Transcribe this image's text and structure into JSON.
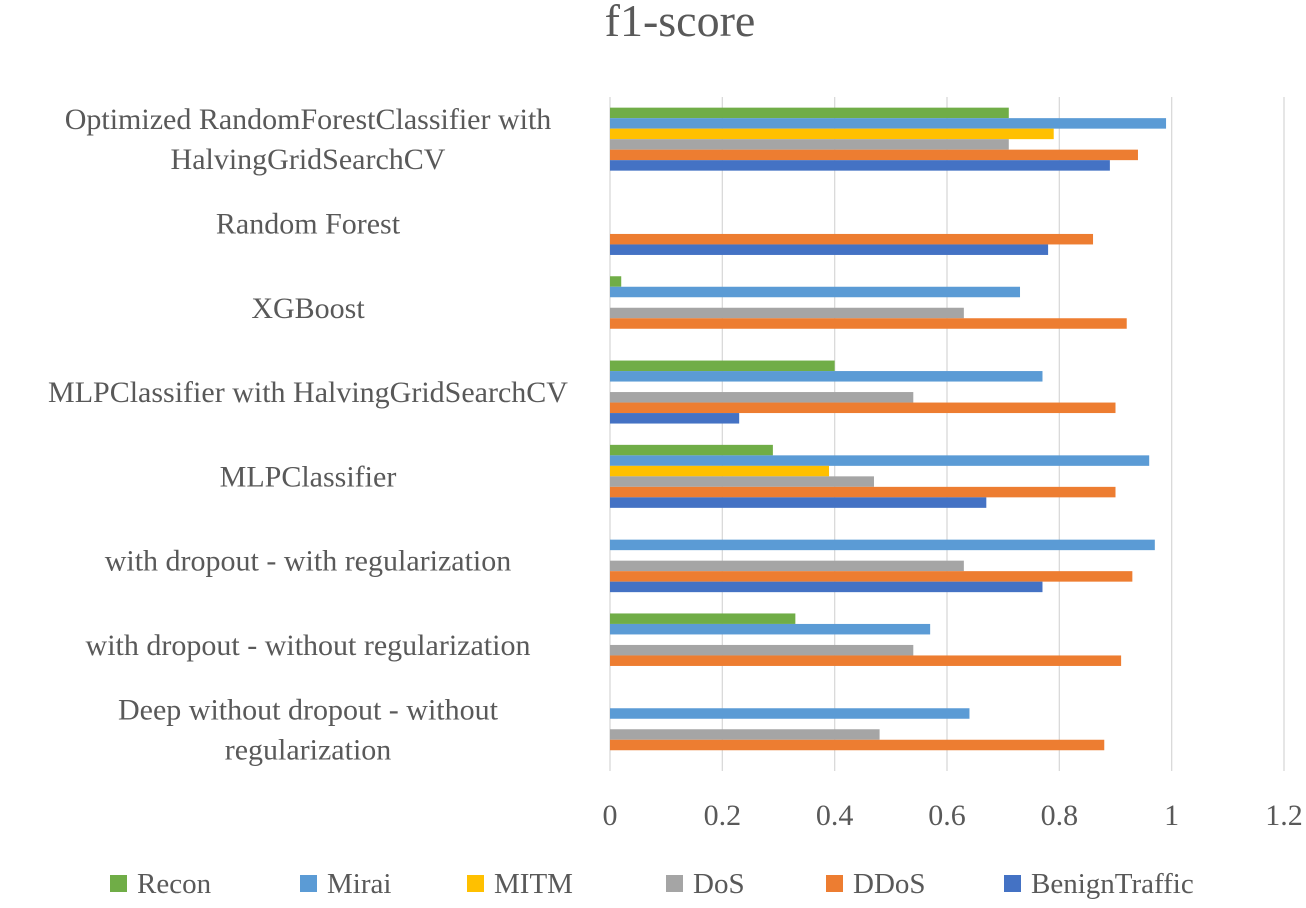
{
  "chart_data": {
    "type": "bar",
    "orientation": "horizontal",
    "title": "f1-score",
    "xlabel": "",
    "ylabel": "",
    "xlim": [
      0,
      1.2
    ],
    "x_ticks": [
      "0",
      "0.2",
      "0.4",
      "0.6",
      "0.8",
      "1",
      "1.2"
    ],
    "x_tick_values": [
      0,
      0.2,
      0.4,
      0.6,
      0.8,
      1.0,
      1.2
    ],
    "grid": "vertical",
    "legend_position": "bottom",
    "categories": [
      "Optimized RandomForestClassifier with HalvingGridSearchCV",
      "Random Forest",
      "XGBoost",
      "MLPClassifier with HalvingGridSearchCV",
      "MLPClassifier",
      "with dropout - with regularization",
      "with dropout - without regularization",
      "Deep without dropout - without regularization"
    ],
    "category_label_lines": [
      [
        "Optimized RandomForestClassifier with",
        "HalvingGridSearchCV"
      ],
      [
        "Random Forest"
      ],
      [
        "XGBoost"
      ],
      [
        "MLPClassifier with HalvingGridSearchCV"
      ],
      [
        "MLPClassifier"
      ],
      [
        "with dropout - with regularization"
      ],
      [
        "with dropout - without regularization"
      ],
      [
        "Deep without dropout - without",
        "regularization"
      ]
    ],
    "series": [
      {
        "name": "Recon",
        "color": "#70AD47",
        "values": [
          0.71,
          0,
          0.02,
          0.4,
          0.29,
          0,
          0.33,
          0
        ]
      },
      {
        "name": "Mirai",
        "color": "#5B9BD5",
        "values": [
          0.99,
          0,
          0.73,
          0.77,
          0.96,
          0.97,
          0.57,
          0.64
        ]
      },
      {
        "name": "MITM",
        "color": "#FFC000",
        "values": [
          0.79,
          0,
          0,
          0,
          0.39,
          0,
          0,
          0
        ]
      },
      {
        "name": "DoS",
        "color": "#A5A5A5",
        "values": [
          0.71,
          0,
          0.63,
          0.54,
          0.47,
          0.63,
          0.54,
          0.48
        ]
      },
      {
        "name": "DDoS",
        "color": "#ED7D31",
        "values": [
          0.94,
          0.86,
          0.92,
          0.9,
          0.9,
          0.93,
          0.91,
          0.88
        ]
      },
      {
        "name": "BenignTraffic",
        "color": "#4472C4",
        "values": [
          0.89,
          0.78,
          0,
          0.23,
          0.67,
          0.77,
          0,
          0
        ]
      }
    ]
  }
}
